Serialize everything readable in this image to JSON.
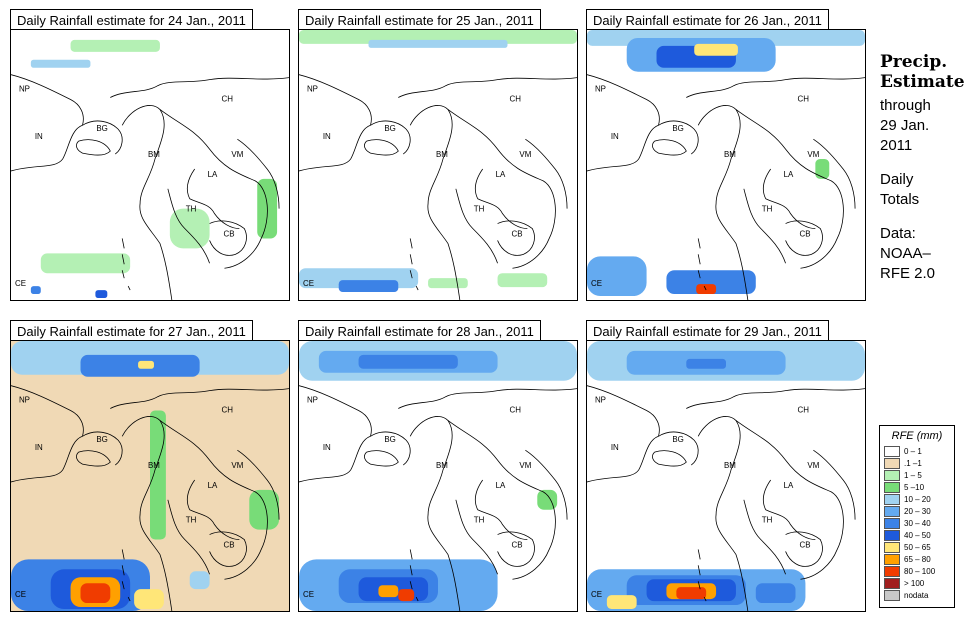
{
  "panels": [
    {
      "title": "Daily Rainfall estimate for  24 Jan., 2011",
      "background": "#ffffff",
      "labels": [
        "NP",
        "IN",
        "BG",
        "BM",
        "CH",
        "VM",
        "LA",
        "TH",
        "CB",
        "CE"
      ]
    },
    {
      "title": "Daily Rainfall estimate for  25 Jan., 2011",
      "background": "#ffffff",
      "labels": [
        "NP",
        "IN",
        "BG",
        "BM",
        "CH",
        "VM",
        "LA",
        "TH",
        "CB",
        "CE"
      ]
    },
    {
      "title": "Daily Rainfall estimate for  26 Jan., 2011",
      "background": "#ffffff",
      "labels": [
        "NP",
        "IN",
        "BG",
        "BM",
        "CH",
        "VM",
        "LA",
        "TH",
        "CB",
        "CE"
      ]
    },
    {
      "title": "Daily Rainfall estimate for  27 Jan., 2011",
      "background": "#f0d9b5",
      "labels": [
        "NP",
        "IN",
        "BG",
        "BM",
        "CH",
        "VM",
        "LA",
        "TH",
        "CB",
        "CE"
      ]
    },
    {
      "title": "Daily Rainfall estimate for  28 Jan., 2011",
      "background": "#ffffff",
      "labels": [
        "NP",
        "IN",
        "BG",
        "BM",
        "CH",
        "VM",
        "LA",
        "TH",
        "CB",
        "CE"
      ]
    },
    {
      "title": "Daily Rainfall estimate for  29 Jan., 2011",
      "background": "#ffffff",
      "labels": [
        "NP",
        "IN",
        "BG",
        "BM",
        "CH",
        "VM",
        "LA",
        "TH",
        "CB",
        "CE"
      ]
    }
  ],
  "sidebar": {
    "heading1": "Precip.",
    "heading2": "Estimate",
    "through": "through",
    "date1": "29 Jan.",
    "date2": "2011",
    "daily": "Daily",
    "totals": "Totals",
    "data1": "Data:",
    "data2": "NOAA–",
    "data3": "RFE 2.0"
  },
  "legend": {
    "title": "RFE (mm)",
    "items": [
      {
        "label": "0 – 1",
        "color": "#ffffff"
      },
      {
        "label": ".1 –1",
        "color": "#f0d9b5"
      },
      {
        "label": "1 – 5",
        "color": "#b4f0b4"
      },
      {
        "label": "5 –10",
        "color": "#78dc78"
      },
      {
        "label": "10 – 20",
        "color": "#a0d2f0"
      },
      {
        "label": "20 – 30",
        "color": "#64aaf0"
      },
      {
        "label": "30 – 40",
        "color": "#3c82e6"
      },
      {
        "label": "40 – 50",
        "color": "#1e5adc"
      },
      {
        "label": "50 – 65",
        "color": "#ffe678"
      },
      {
        "label": "65 – 80",
        "color": "#ffa000"
      },
      {
        "label": "80 – 100",
        "color": "#f03c00"
      },
      {
        "label": "> 100",
        "color": "#a01e1e"
      },
      {
        "label": "nodata",
        "color": "#c8c8c8"
      }
    ]
  }
}
